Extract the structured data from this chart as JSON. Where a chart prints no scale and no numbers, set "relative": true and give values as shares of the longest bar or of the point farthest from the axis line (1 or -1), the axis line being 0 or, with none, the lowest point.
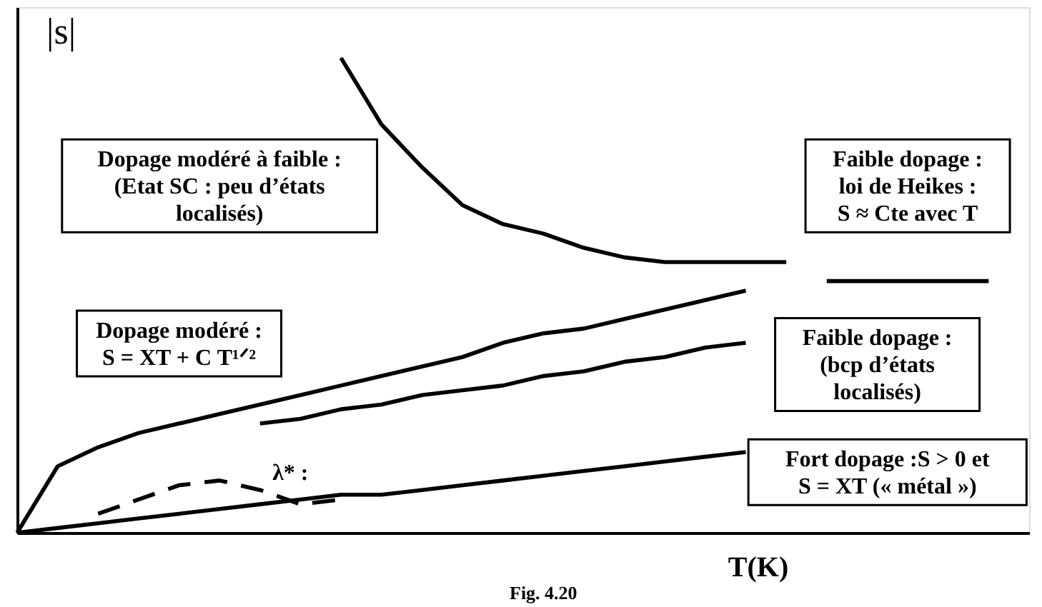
{
  "chart_data": {
    "type": "line",
    "relative": true,
    "xlabel": "T(K)",
    "ylabel": "|s|",
    "tick_labels": false,
    "marker": "none",
    "categories": [
      null,
      null,
      null,
      null,
      null,
      null,
      null,
      null,
      null,
      null,
      null,
      null,
      null,
      null,
      null,
      null,
      null,
      null,
      null,
      null,
      null,
      null,
      null,
      null,
      null
    ],
    "series": [
      {
        "color": "#000000",
        "values": [
          null,
          null,
          null,
          null,
          null,
          null,
          null,
          null,
          1.0,
          0.86,
          0.77,
          0.69,
          0.65,
          0.63,
          0.6,
          0.58,
          0.57,
          0.57,
          0.57,
          0.57,
          null,
          null,
          null,
          null,
          null
        ]
      },
      {
        "color": "#000000",
        "values": [
          null,
          null,
          null,
          null,
          null,
          null,
          null,
          null,
          null,
          null,
          null,
          null,
          null,
          null,
          null,
          null,
          null,
          null,
          null,
          null,
          0.53,
          0.53,
          0.53,
          0.53,
          0.53
        ]
      },
      {
        "color": "#000000",
        "values": [
          0,
          0.14,
          0.18,
          0.21,
          0.23,
          0.25,
          0.27,
          0.29,
          0.31,
          0.33,
          0.35,
          0.37,
          0.4,
          0.42,
          0.43,
          0.45,
          0.47,
          0.49,
          0.51,
          null,
          null,
          null,
          null,
          null,
          null
        ]
      },
      {
        "color": "#000000",
        "values": [
          null,
          null,
          null,
          null,
          null,
          null,
          0.23,
          0.24,
          0.26,
          0.27,
          0.29,
          0.3,
          0.31,
          0.33,
          0.34,
          0.36,
          0.37,
          0.39,
          0.4,
          null,
          null,
          null,
          null,
          null,
          null
        ]
      },
      {
        "color": "#000000",
        "values": [
          0,
          0.01,
          0.02,
          0.03,
          0.04,
          0.05,
          0.06,
          0.07,
          0.08,
          0.08,
          0.09,
          0.1,
          0.11,
          0.12,
          0.13,
          0.14,
          0.15,
          0.16,
          0.17,
          null,
          null,
          null,
          null,
          null,
          null
        ]
      },
      {
        "color": "#000000",
        "line_style": "dashed",
        "values": [
          null,
          null,
          0.04,
          0.07,
          0.1,
          0.11,
          0.09,
          0.06,
          0.07,
          null,
          null,
          null,
          null,
          null,
          null,
          null,
          null,
          null,
          null,
          null,
          null,
          null,
          null,
          null,
          null
        ]
      }
    ],
    "annotations": [
      "Dopage modéré à faible :\n(Etat SC : peu d’états\nlocalisés)",
      "Faible dopage :\nloi de Heikes :\nS ≈ Cte avec T",
      "Dopage modéré :\nS = XT + C T¹ᐟ²",
      "Faible dopage :\n(bcp d’états\nlocalisés)",
      "Fort dopage :S > 0 et\nS = XT (« métal »)",
      "λ* :",
      "Fig. 4.20"
    ]
  }
}
